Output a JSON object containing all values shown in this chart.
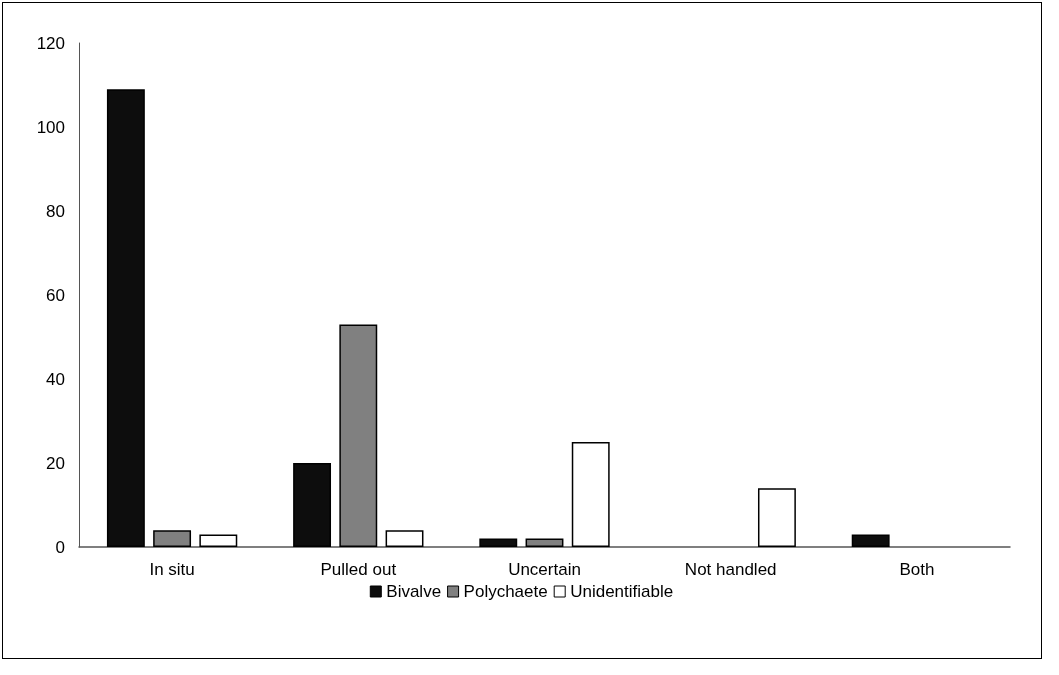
{
  "chart_data": {
    "type": "bar",
    "categories": [
      "In situ",
      "Pulled out",
      "Uncertain",
      "Not handled",
      "Both"
    ],
    "series": [
      {
        "name": "Bivalve",
        "color": "#0d0d0d",
        "values": [
          109,
          20,
          2,
          null,
          3
        ]
      },
      {
        "name": "Polychaete",
        "color": "#808080",
        "values": [
          4,
          53,
          2,
          null,
          null
        ]
      },
      {
        "name": "Unidentifiable",
        "color": "#ffffff",
        "values": [
          3,
          4,
          25,
          14,
          null
        ]
      }
    ],
    "ylim": [
      0,
      120
    ],
    "yticks": [
      0,
      20,
      40,
      60,
      80,
      100,
      120
    ],
    "grid": false,
    "legend": "bottom"
  }
}
